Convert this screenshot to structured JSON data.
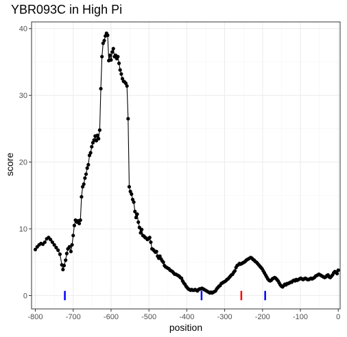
{
  "chart_data": {
    "type": "line",
    "title": "YBR093C in High Pi",
    "xlabel": "position",
    "ylabel": "score",
    "xlim": [
      -810,
      5
    ],
    "ylim": [
      -2,
      41
    ],
    "x_ticks": [
      -800,
      -700,
      -600,
      -500,
      -400,
      -300,
      -200,
      -100,
      0
    ],
    "y_ticks": [
      0,
      10,
      20,
      30,
      40
    ],
    "grid": true,
    "colors": {
      "line": "#000000",
      "points": "#000000",
      "marker_blue": "#0000ff",
      "marker_red": "#ff0000",
      "grid_major": "#ebebeb",
      "grid_minor": "#f5f5f5",
      "panel_border": "#333333"
    },
    "series": [
      {
        "points": [
          [
            -800,
            6.9
          ],
          [
            -795,
            7.3
          ],
          [
            -790,
            7.6
          ],
          [
            -785,
            7.8
          ],
          [
            -780,
            7.7
          ],
          [
            -775,
            8.0
          ],
          [
            -770,
            8.5
          ],
          [
            -765,
            8.7
          ],
          [
            -760,
            8.4
          ],
          [
            -755,
            8.0
          ],
          [
            -750,
            7.6
          ],
          [
            -745,
            7.2
          ],
          [
            -740,
            6.8
          ],
          [
            -735,
            6.2
          ],
          [
            -730,
            4.6
          ],
          [
            -727,
            3.9
          ],
          [
            -724,
            4.5
          ],
          [
            -720,
            5.3
          ],
          [
            -717,
            6.3
          ],
          [
            -714,
            7.0
          ],
          [
            -710,
            7.3
          ],
          [
            -706,
            6.6
          ],
          [
            -703,
            7.6
          ],
          [
            -700,
            9.0
          ],
          [
            -697,
            10.5
          ],
          [
            -694,
            11.3
          ],
          [
            -690,
            11.0
          ],
          [
            -687,
            11.2
          ],
          [
            -684,
            10.8
          ],
          [
            -681,
            11.3
          ],
          [
            -678,
            14.8
          ],
          [
            -675,
            16.3
          ],
          [
            -672,
            16.7
          ],
          [
            -669,
            17.6
          ],
          [
            -666,
            18.2
          ],
          [
            -663,
            19.1
          ],
          [
            -660,
            19.6
          ],
          [
            -657,
            21.0
          ],
          [
            -654,
            21.4
          ],
          [
            -651,
            22.3
          ],
          [
            -648,
            22.9
          ],
          [
            -645,
            23.3
          ],
          [
            -642,
            23.9
          ],
          [
            -639,
            23.2
          ],
          [
            -636,
            24.0
          ],
          [
            -633,
            23.5
          ],
          [
            -630,
            24.8
          ],
          [
            -627,
            31.0
          ],
          [
            -624,
            35.8
          ],
          [
            -621,
            37.8
          ],
          [
            -618,
            38.2
          ],
          [
            -615,
            38.9
          ],
          [
            -612,
            39.3
          ],
          [
            -609,
            39.0
          ],
          [
            -606,
            35.2
          ],
          [
            -603,
            36.0
          ],
          [
            -600,
            35.3
          ],
          [
            -597,
            36.5
          ],
          [
            -594,
            37.0
          ],
          [
            -591,
            35.8
          ],
          [
            -588,
            36.0
          ],
          [
            -585,
            35.5
          ],
          [
            -582,
            35.8
          ],
          [
            -579,
            34.8
          ],
          [
            -576,
            33.8
          ],
          [
            -573,
            33.2
          ],
          [
            -570,
            32.5
          ],
          [
            -567,
            32.1
          ],
          [
            -564,
            32.0
          ],
          [
            -561,
            31.8
          ],
          [
            -558,
            31.4
          ],
          [
            -555,
            26.5
          ],
          [
            -552,
            16.3
          ],
          [
            -549,
            15.6
          ],
          [
            -546,
            15.2
          ],
          [
            -543,
            14.4
          ],
          [
            -540,
            14.0
          ],
          [
            -537,
            12.6
          ],
          [
            -534,
            11.7
          ],
          [
            -531,
            12.2
          ],
          [
            -528,
            11.0
          ],
          [
            -525,
            10.2
          ],
          [
            -522,
            9.4
          ],
          [
            -519,
            9.9
          ],
          [
            -516,
            9.0
          ],
          [
            -513,
            8.9
          ],
          [
            -510,
            8.7
          ],
          [
            -507,
            8.6
          ],
          [
            -504,
            8.4
          ],
          [
            -501,
            8.5
          ],
          [
            -498,
            8.7
          ],
          [
            -495,
            8.0
          ],
          [
            -492,
            7.0
          ],
          [
            -489,
            6.9
          ],
          [
            -486,
            6.7
          ],
          [
            -483,
            6.5
          ],
          [
            -480,
            6.6
          ],
          [
            -477,
            5.9
          ],
          [
            -474,
            5.6
          ],
          [
            -471,
            5.9
          ],
          [
            -468,
            5.5
          ],
          [
            -465,
            5.2
          ],
          [
            -462,
            5.0
          ],
          [
            -459,
            4.5
          ],
          [
            -456,
            4.3
          ],
          [
            -453,
            4.2
          ],
          [
            -450,
            4.1
          ],
          [
            -447,
            4.0
          ],
          [
            -444,
            3.8
          ],
          [
            -441,
            3.7
          ],
          [
            -438,
            3.6
          ],
          [
            -435,
            3.4
          ],
          [
            -432,
            3.2
          ],
          [
            -429,
            3.2
          ],
          [
            -426,
            3.1
          ],
          [
            -423,
            3.0
          ],
          [
            -420,
            2.9
          ],
          [
            -417,
            2.7
          ],
          [
            -414,
            2.6
          ],
          [
            -411,
            2.2
          ],
          [
            -408,
            1.9
          ],
          [
            -405,
            1.7
          ],
          [
            -402,
            1.4
          ],
          [
            -399,
            1.2
          ],
          [
            -396,
            1.0
          ],
          [
            -393,
            0.9
          ],
          [
            -390,
            0.8
          ],
          [
            -387,
            0.9
          ],
          [
            -384,
            0.8
          ],
          [
            -381,
            0.8
          ],
          [
            -378,
            0.9
          ],
          [
            -375,
            0.8
          ],
          [
            -372,
            0.7
          ],
          [
            -369,
            0.9
          ],
          [
            -366,
            1.0
          ],
          [
            -363,
            1.0
          ],
          [
            -360,
            1.1
          ],
          [
            -357,
            1.0
          ],
          [
            -354,
            0.9
          ],
          [
            -351,
            0.8
          ],
          [
            -348,
            0.7
          ],
          [
            -345,
            0.6
          ],
          [
            -342,
            0.5
          ],
          [
            -339,
            0.4
          ],
          [
            -336,
            0.5
          ],
          [
            -333,
            0.4
          ],
          [
            -330,
            0.5
          ],
          [
            -327,
            0.6
          ],
          [
            -324,
            0.7
          ],
          [
            -321,
            1.0
          ],
          [
            -318,
            1.2
          ],
          [
            -315,
            1.4
          ],
          [
            -312,
            1.5
          ],
          [
            -309,
            1.8
          ],
          [
            -306,
            1.9
          ],
          [
            -303,
            2.0
          ],
          [
            -300,
            2.1
          ],
          [
            -297,
            2.2
          ],
          [
            -294,
            2.4
          ],
          [
            -291,
            2.5
          ],
          [
            -288,
            2.7
          ],
          [
            -285,
            2.9
          ],
          [
            -282,
            3.1
          ],
          [
            -279,
            3.2
          ],
          [
            -276,
            3.5
          ],
          [
            -273,
            3.7
          ],
          [
            -270,
            4.2
          ],
          [
            -267,
            4.5
          ],
          [
            -264,
            4.6
          ],
          [
            -261,
            4.8
          ],
          [
            -258,
            4.7
          ],
          [
            -255,
            4.8
          ],
          [
            -252,
            4.9
          ],
          [
            -249,
            5.0
          ],
          [
            -246,
            5.1
          ],
          [
            -243,
            5.3
          ],
          [
            -240,
            5.4
          ],
          [
            -237,
            5.5
          ],
          [
            -234,
            5.6
          ],
          [
            -231,
            5.7
          ],
          [
            -228,
            5.6
          ],
          [
            -225,
            5.4
          ],
          [
            -222,
            5.3
          ],
          [
            -219,
            5.1
          ],
          [
            -216,
            5.0
          ],
          [
            -213,
            4.8
          ],
          [
            -210,
            4.6
          ],
          [
            -207,
            4.4
          ],
          [
            -204,
            4.2
          ],
          [
            -201,
            4.0
          ],
          [
            -198,
            3.7
          ],
          [
            -195,
            3.4
          ],
          [
            -192,
            3.1
          ],
          [
            -189,
            2.8
          ],
          [
            -186,
            2.5
          ],
          [
            -183,
            2.3
          ],
          [
            -180,
            2.2
          ],
          [
            -177,
            2.3
          ],
          [
            -174,
            2.5
          ],
          [
            -171,
            2.6
          ],
          [
            -168,
            2.7
          ],
          [
            -165,
            2.6
          ],
          [
            -162,
            2.4
          ],
          [
            -159,
            2.2
          ],
          [
            -156,
            1.9
          ],
          [
            -153,
            1.6
          ],
          [
            -150,
            1.4
          ],
          [
            -147,
            1.3
          ],
          [
            -144,
            1.5
          ],
          [
            -141,
            1.7
          ],
          [
            -138,
            1.6
          ],
          [
            -135,
            1.8
          ],
          [
            -132,
            1.8
          ],
          [
            -129,
            1.9
          ],
          [
            -126,
            2.0
          ],
          [
            -123,
            2.0
          ],
          [
            -120,
            2.2
          ],
          [
            -117,
            2.3
          ],
          [
            -114,
            2.2
          ],
          [
            -111,
            2.4
          ],
          [
            -108,
            2.3
          ],
          [
            -105,
            2.4
          ],
          [
            -102,
            2.5
          ],
          [
            -99,
            2.6
          ],
          [
            -96,
            2.5
          ],
          [
            -93,
            2.4
          ],
          [
            -90,
            2.5
          ],
          [
            -87,
            2.6
          ],
          [
            -84,
            2.5
          ],
          [
            -81,
            2.4
          ],
          [
            -78,
            2.4
          ],
          [
            -75,
            2.5
          ],
          [
            -72,
            2.6
          ],
          [
            -69,
            2.5
          ],
          [
            -66,
            2.6
          ],
          [
            -63,
            2.7
          ],
          [
            -60,
            2.9
          ],
          [
            -57,
            3.0
          ],
          [
            -54,
            3.1
          ],
          [
            -51,
            3.2
          ],
          [
            -48,
            3.1
          ],
          [
            -45,
            3.0
          ],
          [
            -42,
            2.9
          ],
          [
            -39,
            2.8
          ],
          [
            -36,
            2.7
          ],
          [
            -33,
            2.8
          ],
          [
            -30,
            3.0
          ],
          [
            -27,
            3.1
          ],
          [
            -24,
            2.8
          ],
          [
            -21,
            2.7
          ],
          [
            -18,
            2.9
          ],
          [
            -15,
            3.1
          ],
          [
            -12,
            3.4
          ],
          [
            -9,
            3.6
          ],
          [
            -6,
            3.5
          ],
          [
            -3,
            3.3
          ],
          [
            0,
            3.8
          ]
        ]
      }
    ],
    "markers": [
      {
        "x": -722,
        "color": "blue"
      },
      {
        "x": -361,
        "color": "blue"
      },
      {
        "x": -256,
        "color": "red"
      },
      {
        "x": -193,
        "color": "blue"
      }
    ]
  }
}
